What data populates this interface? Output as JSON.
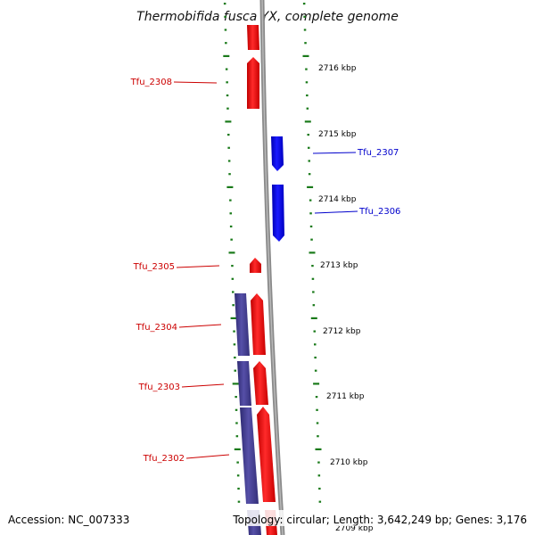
{
  "map": {
    "title": "Thermobifida fusca YX, complete genome",
    "accession": "Accession: NC_007333",
    "summary": "Topology: circular; Length: 3,642,249 bp; Genes: 3,176",
    "kbp_labels": [
      {
        "text": "2716 kbp",
        "kbp": 2716
      },
      {
        "text": "2715 kbp",
        "kbp": 2715
      },
      {
        "text": "2714 kbp",
        "kbp": 2714
      },
      {
        "text": "2713 kbp",
        "kbp": 2713
      },
      {
        "text": "2712 kbp",
        "kbp": 2712
      },
      {
        "text": "2711 kbp",
        "kbp": 2711
      },
      {
        "text": "2710 kbp",
        "kbp": 2710
      },
      {
        "text": "2709 kbp",
        "kbp": 2709
      }
    ],
    "genes": [
      {
        "name": "Tfu_2308",
        "strand": "forward"
      },
      {
        "name": "Tfu_2307",
        "strand": "reverse"
      },
      {
        "name": "Tfu_2306",
        "strand": "reverse"
      },
      {
        "name": "Tfu_2305",
        "strand": "forward"
      },
      {
        "name": "Tfu_2304",
        "strand": "forward"
      },
      {
        "name": "Tfu_2303",
        "strand": "forward"
      },
      {
        "name": "Tfu_2302",
        "strand": "forward"
      }
    ],
    "colors": {
      "forward_gene": "#ff0000",
      "reverse_gene": "#0000ff",
      "cds_feature": "#4a4594",
      "ticks": "#1a7a1a",
      "backbone": "#8a8a8a"
    }
  }
}
